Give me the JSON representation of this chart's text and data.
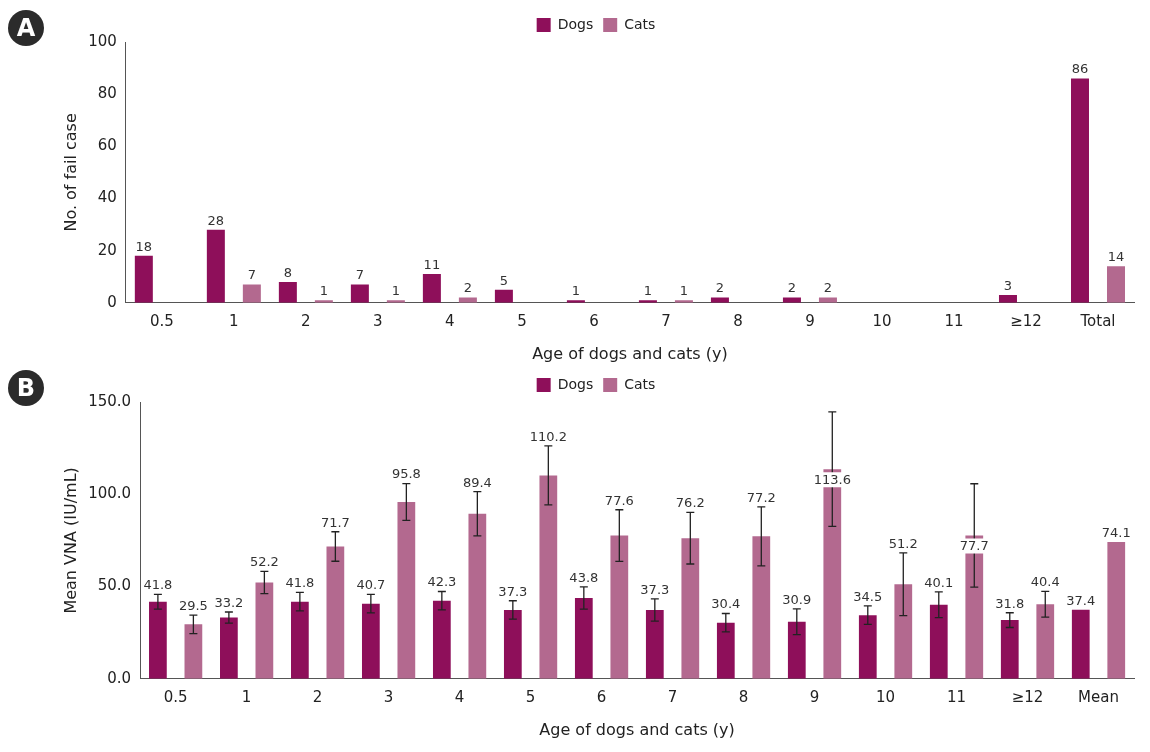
{
  "chart_data": [
    {
      "type": "bar",
      "annotations": [
        "A"
      ],
      "xlabel": "Age of dogs and cats (y)",
      "ylabel": "No. of fail case",
      "categories": [
        "0.5",
        "1",
        "2",
        "3",
        "4",
        "5",
        "6",
        "7",
        "8",
        "9",
        "10",
        "11",
        "≥12",
        "Total"
      ],
      "series": [
        {
          "name": "Dogs",
          "color": "#8e0f5a",
          "values": [
            18,
            28,
            8,
            7,
            11,
            5,
            1,
            1,
            2,
            2,
            0,
            0,
            3,
            86
          ],
          "value_labels": [
            "18",
            "28",
            "8",
            "7",
            "11",
            "5",
            "1",
            "1",
            "2",
            "2",
            null,
            null,
            "3",
            "86"
          ]
        },
        {
          "name": "Cats",
          "color": "#b3698f",
          "values": [
            0,
            7,
            1,
            1,
            2,
            0,
            0,
            1,
            0,
            2,
            0,
            0,
            0,
            14
          ],
          "value_labels": [
            null,
            "7",
            "1",
            "1",
            "2",
            null,
            null,
            "1",
            null,
            "2",
            null,
            null,
            null,
            "14"
          ]
        }
      ],
      "ylim": [
        0,
        100
      ],
      "yticks": [
        0,
        20,
        40,
        60,
        80,
        100
      ],
      "grid": false,
      "legend": "top"
    },
    {
      "type": "bar",
      "annotations": [
        "B"
      ],
      "xlabel": "Age of dogs and cats (y)",
      "ylabel": "Mean VNA (IU/mL)",
      "categories": [
        "0.5",
        "1",
        "2",
        "3",
        "4",
        "5",
        "6",
        "7",
        "8",
        "9",
        "10",
        "11",
        "≥12",
        "Mean"
      ],
      "series": [
        {
          "name": "Dogs",
          "color": "#8e0f5a",
          "values": [
            41.8,
            33.2,
            41.8,
            40.7,
            42.3,
            37.3,
            43.8,
            37.3,
            30.4,
            30.9,
            34.5,
            40.1,
            31.8,
            37.4
          ],
          "errors": [
            4,
            3,
            5,
            5,
            5,
            5,
            6,
            6,
            5,
            7,
            5,
            7,
            4,
            null
          ]
        },
        {
          "name": "Cats",
          "color": "#b3698f",
          "values": [
            29.5,
            52.2,
            71.7,
            95.8,
            89.4,
            110.2,
            77.6,
            76.2,
            77.2,
            113.6,
            51.2,
            77.7,
            40.4,
            74.1
          ],
          "errors": [
            5,
            6,
            8,
            10,
            12,
            16,
            14,
            14,
            16,
            31,
            17,
            28,
            7,
            null
          ]
        }
      ],
      "ylim": [
        0,
        150
      ],
      "yticks": [
        {
          "value": 0,
          "label": "0.0"
        },
        {
          "value": 50,
          "label": "50.0"
        },
        {
          "value": 100,
          "label": "100.0"
        },
        {
          "value": 150,
          "label": "150.0"
        }
      ],
      "grid": false,
      "legend": "top",
      "data_labels": true
    }
  ]
}
